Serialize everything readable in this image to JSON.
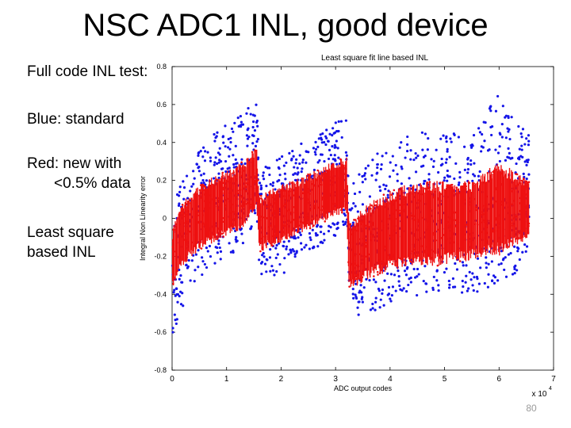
{
  "slide": {
    "title": "NSC ADC1 INL, good device",
    "notes": [
      [
        "Full code INL test:"
      ],
      [
        "Blue: standard"
      ],
      [
        "Red: new with",
        "<0.5% data"
      ],
      [
        "Least square",
        "based INL"
      ]
    ],
    "page_number": "80"
  },
  "chart_data": {
    "type": "scatter",
    "title": "Least square fit line based INL",
    "xlabel": "ADC output codes",
    "ylabel": "Integral Non Linearity error",
    "x_multiplier_label": "x 10",
    "x_multiplier_exponent": "4",
    "xlim": [
      0,
      7
    ],
    "ylim": [
      -0.8,
      0.8
    ],
    "xticks": [
      0,
      1,
      2,
      3,
      4,
      5,
      6,
      7
    ],
    "yticks": [
      0.8,
      0.6,
      0.4,
      0.2,
      0,
      -0.2,
      -0.4,
      -0.6,
      -0.8
    ],
    "ytick_labels": [
      "0.8",
      "0.6",
      "0.4",
      "0.2",
      "0",
      "-0.2",
      "-0.4",
      "-0.6",
      "-0.8"
    ],
    "grid": false,
    "series": [
      {
        "name": "standard",
        "color": "#1515e8",
        "envelope_x": [
          0,
          0.1,
          0.3,
          0.6,
          1.0,
          1.3,
          1.55,
          1.6,
          2.0,
          2.4,
          2.8,
          3.2,
          3.25,
          3.6,
          4.0,
          4.5,
          5.0,
          5.5,
          6.0,
          6.3,
          6.55
        ],
        "upper": [
          -0.12,
          0.15,
          0.3,
          0.42,
          0.5,
          0.55,
          0.64,
          0.3,
          0.34,
          0.4,
          0.46,
          0.55,
          0.18,
          0.3,
          0.4,
          0.46,
          0.45,
          0.44,
          0.68,
          0.5,
          0.46
        ],
        "lower": [
          -0.65,
          -0.55,
          -0.38,
          -0.3,
          -0.2,
          -0.15,
          0.0,
          -0.3,
          -0.3,
          -0.22,
          -0.12,
          -0.06,
          -0.55,
          -0.5,
          -0.45,
          -0.42,
          -0.38,
          -0.4,
          -0.35,
          -0.3,
          -0.18
        ]
      },
      {
        "name": "new with <0.5% data",
        "color": "#ee1111",
        "envelope_x": [
          0,
          0.1,
          0.3,
          0.6,
          1.0,
          1.3,
          1.55,
          1.6,
          2.0,
          2.4,
          2.8,
          3.2,
          3.25,
          3.6,
          4.0,
          4.5,
          5.0,
          5.5,
          6.0,
          6.3,
          6.55
        ],
        "upper": [
          -0.08,
          0.05,
          0.12,
          0.2,
          0.25,
          0.3,
          0.38,
          0.12,
          0.18,
          0.22,
          0.28,
          0.33,
          -0.02,
          0.08,
          0.15,
          0.2,
          0.2,
          0.2,
          0.3,
          0.25,
          0.2
        ],
        "lower": [
          -0.38,
          -0.3,
          -0.22,
          -0.15,
          -0.1,
          -0.05,
          0.05,
          -0.18,
          -0.13,
          -0.08,
          -0.02,
          0.03,
          -0.38,
          -0.32,
          -0.28,
          -0.25,
          -0.25,
          -0.22,
          -0.2,
          -0.15,
          -0.1
        ]
      }
    ]
  }
}
